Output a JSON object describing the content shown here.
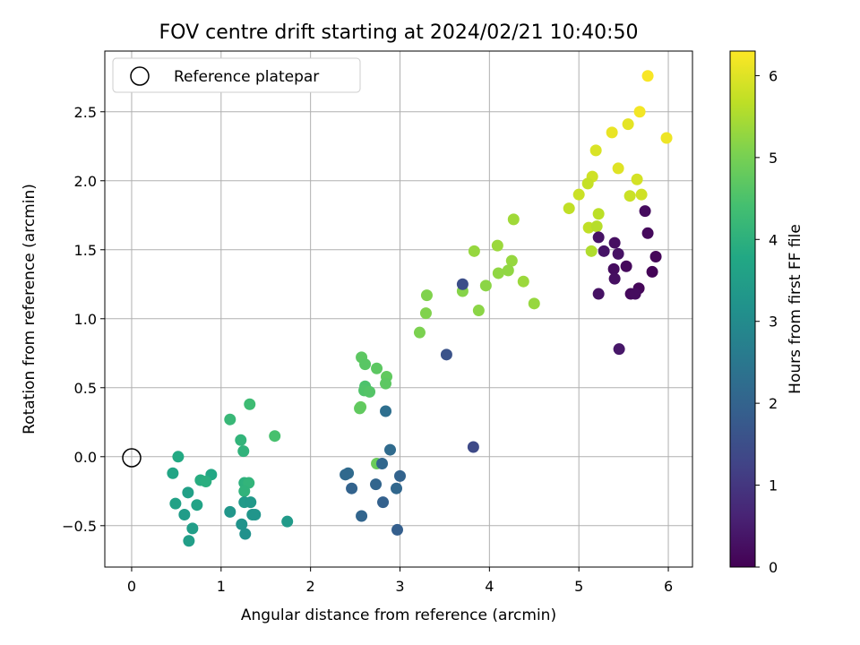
{
  "chart_data": {
    "type": "scatter",
    "title": "FOV centre drift starting at 2024/02/21 10:40:50",
    "xlabel": "Angular distance from reference (arcmin)",
    "ylabel": "Rotation from reference (arcmin)",
    "xlim": [
      -0.3,
      6.27
    ],
    "ylim": [
      -0.8,
      2.94
    ],
    "xticks": [
      0,
      1,
      2,
      3,
      4,
      5,
      6
    ],
    "yticks": [
      -0.5,
      0.0,
      0.5,
      1.0,
      1.5,
      2.0,
      2.5
    ],
    "grid": true,
    "legend": {
      "position": "upper-left",
      "entries": [
        "Reference platepar"
      ]
    },
    "reference_point": {
      "x": 0,
      "y": 0
    },
    "colorbar": {
      "label": "Hours from first FF file",
      "colormap": "viridis",
      "range": [
        0,
        6.3
      ],
      "ticks": [
        0,
        1,
        2,
        3,
        4,
        5,
        6
      ]
    },
    "points": [
      {
        "x": 5.77,
        "y": 2.76,
        "h": 6.25
      },
      {
        "x": 5.68,
        "y": 2.5,
        "h": 6.2
      },
      {
        "x": 5.98,
        "y": 2.31,
        "h": 6.15
      },
      {
        "x": 5.55,
        "y": 2.41,
        "h": 6.05
      },
      {
        "x": 5.37,
        "y": 2.35,
        "h": 6.1
      },
      {
        "x": 5.19,
        "y": 2.22,
        "h": 5.95
      },
      {
        "x": 5.44,
        "y": 2.09,
        "h": 6.0
      },
      {
        "x": 5.65,
        "y": 2.01,
        "h": 5.9
      },
      {
        "x": 5.7,
        "y": 1.9,
        "h": 5.85
      },
      {
        "x": 5.57,
        "y": 1.89,
        "h": 5.8
      },
      {
        "x": 5.15,
        "y": 2.03,
        "h": 5.85
      },
      {
        "x": 5.1,
        "y": 1.98,
        "h": 5.75
      },
      {
        "x": 5.0,
        "y": 1.9,
        "h": 5.8
      },
      {
        "x": 4.89,
        "y": 1.8,
        "h": 5.7
      },
      {
        "x": 5.22,
        "y": 1.76,
        "h": 5.65
      },
      {
        "x": 5.11,
        "y": 1.66,
        "h": 5.7
      },
      {
        "x": 5.2,
        "y": 1.67,
        "h": 5.6
      },
      {
        "x": 5.14,
        "y": 1.49,
        "h": 5.55
      },
      {
        "x": 4.27,
        "y": 1.72,
        "h": 5.4
      },
      {
        "x": 4.09,
        "y": 1.53,
        "h": 5.35
      },
      {
        "x": 3.83,
        "y": 1.49,
        "h": 5.3
      },
      {
        "x": 4.25,
        "y": 1.42,
        "h": 5.3
      },
      {
        "x": 4.21,
        "y": 1.35,
        "h": 5.25
      },
      {
        "x": 4.1,
        "y": 1.33,
        "h": 5.25
      },
      {
        "x": 4.38,
        "y": 1.27,
        "h": 5.35
      },
      {
        "x": 3.96,
        "y": 1.24,
        "h": 5.2
      },
      {
        "x": 4.5,
        "y": 1.11,
        "h": 5.3
      },
      {
        "x": 3.7,
        "y": 1.2,
        "h": 5.15
      },
      {
        "x": 3.88,
        "y": 1.06,
        "h": 5.2
      },
      {
        "x": 3.3,
        "y": 1.17,
        "h": 5.1
      },
      {
        "x": 3.29,
        "y": 1.04,
        "h": 5.1
      },
      {
        "x": 3.22,
        "y": 0.9,
        "h": 5.05
      },
      {
        "x": 2.57,
        "y": 0.72,
        "h": 4.7
      },
      {
        "x": 2.61,
        "y": 0.67,
        "h": 4.65
      },
      {
        "x": 2.74,
        "y": 0.64,
        "h": 4.7
      },
      {
        "x": 2.85,
        "y": 0.58,
        "h": 4.75
      },
      {
        "x": 2.84,
        "y": 0.53,
        "h": 4.7
      },
      {
        "x": 2.61,
        "y": 0.51,
        "h": 4.5
      },
      {
        "x": 2.6,
        "y": 0.48,
        "h": 4.55
      },
      {
        "x": 2.66,
        "y": 0.47,
        "h": 4.6
      },
      {
        "x": 2.56,
        "y": 0.36,
        "h": 4.8
      },
      {
        "x": 2.55,
        "y": 0.35,
        "h": 4.75
      },
      {
        "x": 2.74,
        "y": -0.05,
        "h": 4.85
      },
      {
        "x": 1.32,
        "y": 0.38,
        "h": 4.3
      },
      {
        "x": 1.6,
        "y": 0.15,
        "h": 4.45
      },
      {
        "x": 1.1,
        "y": 0.27,
        "h": 4.2
      },
      {
        "x": 1.22,
        "y": 0.12,
        "h": 4.1
      },
      {
        "x": 1.25,
        "y": 0.04,
        "h": 4.05
      },
      {
        "x": 0.52,
        "y": 0.0,
        "h": 3.8
      },
      {
        "x": 0.46,
        "y": -0.12,
        "h": 3.7
      },
      {
        "x": 0.89,
        "y": -0.13,
        "h": 3.75
      },
      {
        "x": 0.77,
        "y": -0.17,
        "h": 3.9
      },
      {
        "x": 0.83,
        "y": -0.18,
        "h": 3.95
      },
      {
        "x": 1.26,
        "y": -0.19,
        "h": 4.0
      },
      {
        "x": 1.31,
        "y": -0.19,
        "h": 4.1
      },
      {
        "x": 1.26,
        "y": -0.25,
        "h": 4.05
      },
      {
        "x": 0.63,
        "y": -0.26,
        "h": 3.55
      },
      {
        "x": 0.49,
        "y": -0.34,
        "h": 3.6
      },
      {
        "x": 0.73,
        "y": -0.35,
        "h": 3.65
      },
      {
        "x": 1.26,
        "y": -0.33,
        "h": 3.4
      },
      {
        "x": 1.33,
        "y": -0.33,
        "h": 3.35
      },
      {
        "x": 1.1,
        "y": -0.4,
        "h": 3.3
      },
      {
        "x": 1.35,
        "y": -0.42,
        "h": 3.3
      },
      {
        "x": 1.38,
        "y": -0.42,
        "h": 3.25
      },
      {
        "x": 0.59,
        "y": -0.42,
        "h": 3.45
      },
      {
        "x": 1.74,
        "y": -0.47,
        "h": 3.4
      },
      {
        "x": 1.23,
        "y": -0.49,
        "h": 3.2
      },
      {
        "x": 0.68,
        "y": -0.52,
        "h": 3.5
      },
      {
        "x": 1.27,
        "y": -0.56,
        "h": 3.15
      },
      {
        "x": 0.64,
        "y": -0.61,
        "h": 3.5
      },
      {
        "x": 2.84,
        "y": 0.33,
        "h": 2.3
      },
      {
        "x": 2.89,
        "y": 0.05,
        "h": 2.2
      },
      {
        "x": 2.42,
        "y": -0.12,
        "h": 2.2
      },
      {
        "x": 2.39,
        "y": -0.13,
        "h": 2.15
      },
      {
        "x": 2.8,
        "y": -0.05,
        "h": 2.1
      },
      {
        "x": 3.0,
        "y": -0.14,
        "h": 2.0
      },
      {
        "x": 2.73,
        "y": -0.2,
        "h": 2.05
      },
      {
        "x": 2.46,
        "y": -0.23,
        "h": 2.0
      },
      {
        "x": 2.96,
        "y": -0.23,
        "h": 2.1
      },
      {
        "x": 2.81,
        "y": -0.33,
        "h": 1.95
      },
      {
        "x": 2.57,
        "y": -0.43,
        "h": 2.05
      },
      {
        "x": 2.97,
        "y": -0.53,
        "h": 1.9
      },
      {
        "x": 3.52,
        "y": 0.74,
        "h": 1.6
      },
      {
        "x": 3.7,
        "y": 1.25,
        "h": 1.5
      },
      {
        "x": 3.82,
        "y": 0.07,
        "h": 1.4
      },
      {
        "x": 5.74,
        "y": 1.78,
        "h": 0.2
      },
      {
        "x": 5.77,
        "y": 1.62,
        "h": 0.15
      },
      {
        "x": 5.22,
        "y": 1.59,
        "h": 0.3
      },
      {
        "x": 5.4,
        "y": 1.55,
        "h": 0.25
      },
      {
        "x": 5.28,
        "y": 1.49,
        "h": 0.35
      },
      {
        "x": 5.44,
        "y": 1.47,
        "h": 0.3
      },
      {
        "x": 5.86,
        "y": 1.45,
        "h": 0.1
      },
      {
        "x": 5.39,
        "y": 1.36,
        "h": 0.2
      },
      {
        "x": 5.53,
        "y": 1.38,
        "h": 0.15
      },
      {
        "x": 5.82,
        "y": 1.34,
        "h": 0.05
      },
      {
        "x": 5.4,
        "y": 1.29,
        "h": 0.25
      },
      {
        "x": 5.67,
        "y": 1.22,
        "h": 0.1
      },
      {
        "x": 5.22,
        "y": 1.18,
        "h": 0.3
      },
      {
        "x": 5.58,
        "y": 1.18,
        "h": 0.15
      },
      {
        "x": 5.63,
        "y": 1.18,
        "h": 0.2
      },
      {
        "x": 5.45,
        "y": 0.78,
        "h": 0.4
      }
    ]
  }
}
